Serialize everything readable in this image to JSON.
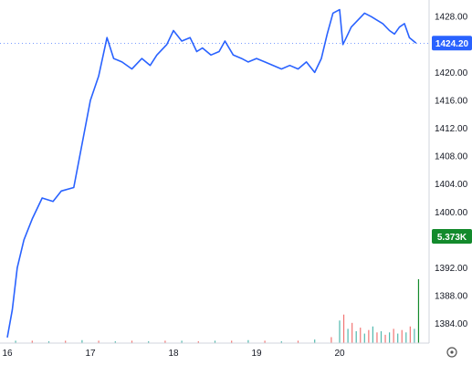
{
  "chart_data": {
    "type": "line",
    "title": "",
    "xlabel": "",
    "ylabel": "",
    "ylim": [
      1381.2,
      1429.6
    ],
    "x_ticks": [
      "16",
      "17",
      "18",
      "19",
      "20"
    ],
    "y_ticks": [
      1428,
      1424,
      1420,
      1416,
      1412,
      1408,
      1404,
      1400,
      1396,
      1392,
      1388,
      1384
    ],
    "y_tick_labels": [
      "1428.00",
      "1424.00",
      "1420.00",
      "1416.00",
      "1412.00",
      "1408.00",
      "1404.00",
      "1400.00",
      "1396.00",
      "1392.00",
      "1388.00",
      "1384.00"
    ],
    "grid": false,
    "legend": "none",
    "series": [
      {
        "color": "#2962ff",
        "x": [
          0,
          0.06,
          0.12,
          0.2,
          0.3,
          0.42,
          0.55,
          0.65,
          0.8,
          1.0,
          1.1,
          1.2,
          1.28,
          1.38,
          1.5,
          1.62,
          1.72,
          1.8,
          1.92,
          2.0,
          2.1,
          2.2,
          2.28,
          2.35,
          2.45,
          2.55,
          2.62,
          2.72,
          2.82,
          2.9,
          3.0,
          3.1,
          3.2,
          3.3,
          3.4,
          3.5,
          3.6,
          3.7,
          3.78,
          3.85,
          3.92,
          4.0,
          4.04,
          4.08,
          4.14,
          4.22,
          4.3,
          4.38,
          4.45,
          4.52,
          4.6,
          4.66,
          4.72,
          4.78,
          4.84,
          4.92
        ],
        "y": [
          1382.0,
          1386.0,
          1392.0,
          1396.0,
          1399.0,
          1402.0,
          1401.5,
          1403.0,
          1403.5,
          1416.0,
          1419.5,
          1425.0,
          1422.0,
          1421.5,
          1420.5,
          1422.0,
          1421.0,
          1422.5,
          1424.0,
          1426.0,
          1424.5,
          1425.0,
          1423.0,
          1423.5,
          1422.5,
          1423.0,
          1424.5,
          1422.5,
          1422.0,
          1421.5,
          1422.0,
          1421.5,
          1421.0,
          1420.5,
          1421.0,
          1420.5,
          1421.5,
          1420.0,
          1422.0,
          1425.5,
          1428.5,
          1429.0,
          1424.0,
          1425.0,
          1426.5,
          1427.5,
          1428.5,
          1428.0,
          1427.5,
          1427.0,
          1426.0,
          1425.5,
          1426.5,
          1427.0,
          1425.0,
          1424.2
        ]
      }
    ],
    "volume": {
      "x": [
        0.1,
        0.3,
        0.5,
        0.7,
        0.9,
        1.1,
        1.3,
        1.5,
        1.7,
        1.9,
        2.1,
        2.3,
        2.5,
        2.7,
        2.9,
        3.1,
        3.3,
        3.5,
        3.7,
        3.9,
        4.0,
        4.05,
        4.1,
        4.15,
        4.2,
        4.25,
        4.3,
        4.35,
        4.4,
        4.45,
        4.5,
        4.55,
        4.6,
        4.65,
        4.7,
        4.75,
        4.8,
        4.85,
        4.9,
        4.95
      ],
      "values": [
        0.2,
        0.2,
        0.15,
        0.2,
        0.25,
        0.2,
        0.15,
        0.2,
        0.15,
        0.2,
        0.2,
        0.15,
        0.2,
        0.2,
        0.25,
        0.2,
        0.15,
        0.2,
        0.3,
        0.5,
        1.9,
        2.4,
        1.2,
        1.7,
        1.0,
        1.3,
        0.8,
        1.1,
        1.4,
        0.9,
        1.0,
        0.7,
        0.9,
        1.2,
        0.8,
        1.1,
        0.9,
        1.4,
        1.2,
        5.373
      ],
      "last_label": "5.373K",
      "up_color": "#26a69a",
      "down_color": "#ef5350",
      "last_color": "#138a2c"
    },
    "last_price": 1424.2,
    "last_price_label": "1424.20",
    "last_price_color": "#2962ff"
  },
  "ui": {
    "settings_icon": "gear-icon"
  }
}
